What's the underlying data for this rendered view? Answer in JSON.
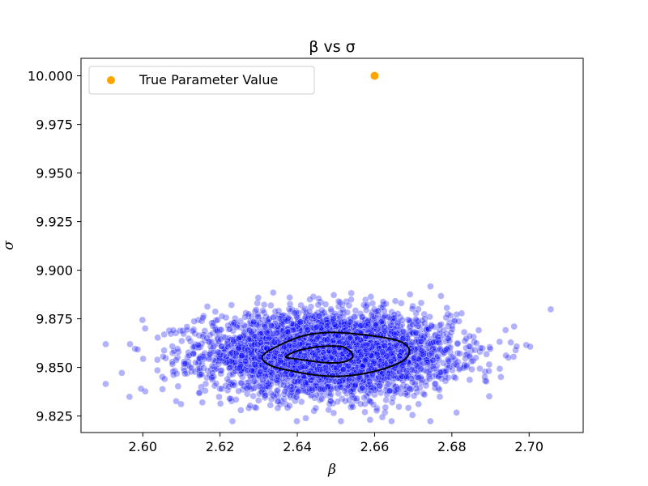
{
  "chart_data": {
    "type": "scatter",
    "title": "β vs σ",
    "xlabel": "β",
    "ylabel": "σ",
    "xlim": [
      2.584,
      2.714
    ],
    "ylim": [
      9.8165,
      10.009
    ],
    "xticks": [
      "2.60",
      "2.62",
      "2.64",
      "2.66",
      "2.68",
      "2.70"
    ],
    "yticks": [
      "9.825",
      "9.850",
      "9.875",
      "9.900",
      "9.925",
      "9.950",
      "9.975",
      "10.000"
    ],
    "grid": false,
    "legend_position": "top-left",
    "legend": [
      {
        "label": "True Parameter Value",
        "color": "#ffa500"
      }
    ],
    "samples": {
      "color": "#0000ff",
      "distribution": "bivariate-normal",
      "count": 4000,
      "mean": [
        2.648,
        9.857
      ],
      "std": [
        0.016,
        0.0105
      ]
    },
    "true_value": {
      "name": "True Parameter Value",
      "x": 2.66,
      "y": 10.0,
      "color": "#ffa500"
    },
    "contours": [
      {
        "level": "outer",
        "points": [
          [
            2.631,
            9.856
          ],
          [
            2.636,
            9.862
          ],
          [
            2.642,
            9.8665
          ],
          [
            2.649,
            9.868
          ],
          [
            2.656,
            9.867
          ],
          [
            2.662,
            9.8655
          ],
          [
            2.667,
            9.863
          ],
          [
            2.669,
            9.8585
          ],
          [
            2.667,
            9.853
          ],
          [
            2.66,
            9.848
          ],
          [
            2.652,
            9.8455
          ],
          [
            2.645,
            9.846
          ],
          [
            2.639,
            9.848
          ],
          [
            2.633,
            9.851
          ]
        ]
      },
      {
        "level": "inner",
        "points": [
          [
            2.637,
            9.8555
          ],
          [
            2.64,
            9.8585
          ],
          [
            2.645,
            9.8605
          ],
          [
            2.649,
            9.861
          ],
          [
            2.652,
            9.8605
          ],
          [
            2.654,
            9.8575
          ],
          [
            2.654,
            9.8545
          ],
          [
            2.651,
            9.8525
          ],
          [
            2.647,
            9.8525
          ],
          [
            2.643,
            9.8535
          ],
          [
            2.639,
            9.8545
          ]
        ]
      }
    ]
  }
}
